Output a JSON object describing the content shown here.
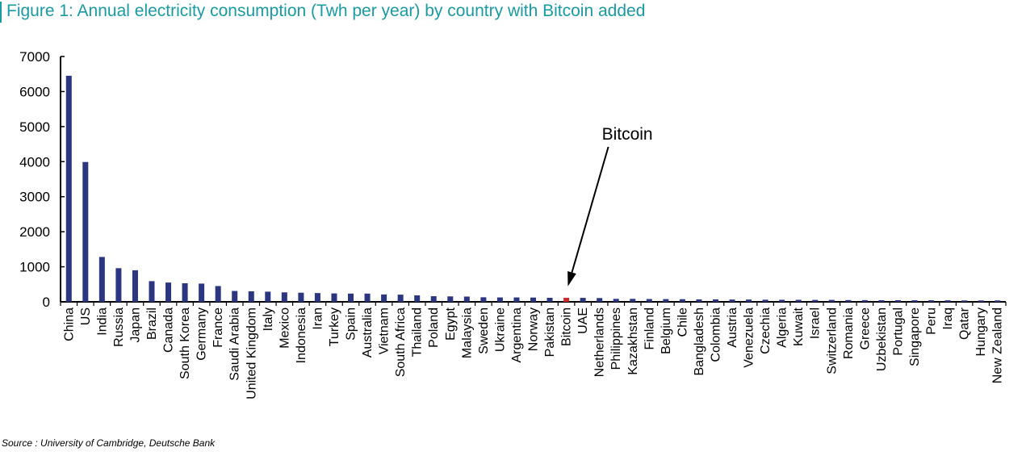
{
  "title": "Figure 1: Annual electricity consumption (Twh per year) by country with Bitcoin added",
  "source": "Source : University of Cambridge, Deutsche Bank",
  "colors": {
    "bar": "#2b3580",
    "highlight": "#cc2b2b",
    "title": "#1a9aa3"
  },
  "chart_data": {
    "type": "bar",
    "title": "Figure 1: Annual electricity consumption (Twh per year) by country with Bitcoin added",
    "xlabel": "",
    "ylabel": "",
    "ylim": [
      0,
      7000
    ],
    "yticks": [
      0,
      1000,
      2000,
      3000,
      4000,
      5000,
      6000,
      7000
    ],
    "categories": [
      "China",
      "US",
      "India",
      "Russia",
      "Japan",
      "Brazil",
      "Canada",
      "South Korea",
      "Germany",
      "France",
      "Saudi Arabia",
      "United Kingdom",
      "Italy",
      "Mexico",
      "Indonesia",
      "Iran",
      "Turkey",
      "Spain",
      "Australia",
      "Vietnam",
      "South Africa",
      "Thailand",
      "Poland",
      "Egypt",
      "Malaysia",
      "Sweden",
      "Ukraine",
      "Argentina",
      "Norway",
      "Pakistan",
      "Bitcoin",
      "UAE",
      "Netherlands",
      "Philippines",
      "Kazakhstan",
      "Finland",
      "Belgium",
      "Chile",
      "Bangladesh",
      "Colombia",
      "Austria",
      "Venezuela",
      "Czechia",
      "Algeria",
      "Kuwait",
      "Israel",
      "Switzerland",
      "Romania",
      "Greece",
      "Uzbekistan",
      "Portugal",
      "Singapore",
      "Peru",
      "Iraq",
      "Qatar",
      "Hungary",
      "New Zealand"
    ],
    "values": [
      6450,
      3990,
      1280,
      960,
      900,
      590,
      550,
      530,
      520,
      450,
      310,
      300,
      290,
      270,
      260,
      250,
      240,
      235,
      235,
      210,
      205,
      185,
      160,
      155,
      150,
      130,
      125,
      125,
      122,
      115,
      116,
      113,
      108,
      85,
      85,
      80,
      78,
      75,
      70,
      70,
      65,
      65,
      60,
      58,
      57,
      55,
      55,
      50,
      48,
      47,
      46,
      45,
      45,
      43,
      40,
      40,
      40
    ]
  },
  "annotation": {
    "label": "Bitcoin",
    "target": "Bitcoin"
  }
}
